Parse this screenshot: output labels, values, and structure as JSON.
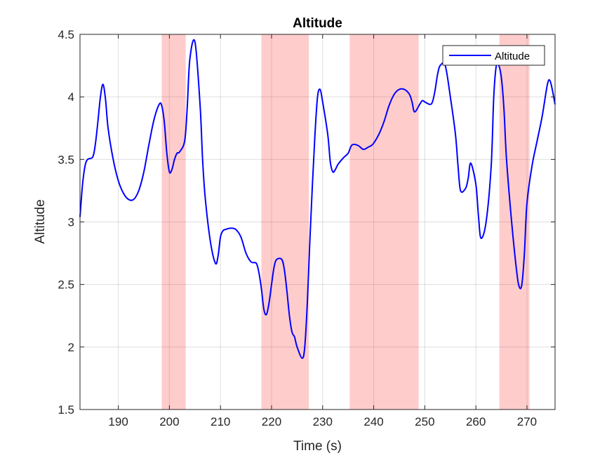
{
  "chart_data": {
    "type": "line",
    "title": "Altitude",
    "xlabel": "Time (s)",
    "ylabel": "Altitude",
    "xlim": [
      182.5,
      275.5
    ],
    "ylim": [
      1.5,
      4.5
    ],
    "xticks": [
      190,
      200,
      210,
      220,
      230,
      240,
      250,
      260,
      270
    ],
    "yticks": [
      1.5,
      2,
      2.5,
      3,
      3.5,
      4,
      4.5
    ],
    "xtick_labels": [
      "190",
      "200",
      "210",
      "220",
      "230",
      "240",
      "250",
      "260",
      "270"
    ],
    "ytick_labels": [
      "1.5",
      "2",
      "2.5",
      "3",
      "3.5",
      "4",
      "4.5"
    ],
    "grid": true,
    "legend": {
      "location": "top-right",
      "entries": [
        "Altitude"
      ]
    },
    "shaded_regions": [
      {
        "x_start": 198.5,
        "x_end": 203.2
      },
      {
        "x_start": 218.0,
        "x_end": 227.3
      },
      {
        "x_start": 235.3,
        "x_end": 248.8
      },
      {
        "x_start": 264.6,
        "x_end": 270.5
      }
    ],
    "series": [
      {
        "name": "Altitude",
        "color": "#0000ff",
        "x": [
          182.5,
          183.0,
          183.5,
          184.0,
          185.0,
          185.5,
          186.0,
          186.5,
          187.0,
          187.5,
          188.0,
          189.0,
          190.0,
          191.0,
          192.0,
          193.0,
          194.0,
          195.0,
          196.0,
          197.0,
          198.0,
          198.5,
          199.0,
          199.5,
          200.0,
          200.5,
          201.0,
          201.5,
          202.0,
          203.0,
          203.5,
          204.0,
          205.0,
          206.0,
          206.5,
          207.0,
          208.0,
          209.0,
          209.5,
          210.0,
          210.5,
          211.0,
          212.0,
          213.0,
          214.0,
          215.0,
          216.0,
          217.0,
          217.5,
          218.0,
          218.5,
          219.0,
          219.5,
          220.0,
          220.5,
          221.0,
          222.0,
          222.5,
          223.0,
          223.5,
          224.0,
          224.5,
          225.0,
          226.0,
          226.5,
          227.0,
          227.5,
          228.0,
          228.5,
          229.0,
          229.5,
          230.0,
          231.0,
          231.5,
          232.0,
          232.5,
          233.0,
          234.0,
          235.0,
          235.5,
          236.0,
          237.0,
          238.0,
          239.0,
          239.5,
          240.0,
          241.0,
          242.0,
          243.0,
          244.0,
          245.0,
          246.0,
          247.0,
          247.5,
          248.0,
          249.0,
          249.5,
          250.0,
          251.0,
          251.5,
          252.0,
          252.5,
          253.0,
          254.0,
          255.0,
          256.0,
          256.5,
          257.0,
          258.0,
          258.5,
          259.0,
          260.0,
          260.5,
          261.0,
          262.0,
          263.0,
          263.5,
          264.0,
          264.5,
          265.0,
          265.5,
          266.0,
          267.0,
          268.0,
          268.5,
          269.0,
          269.5,
          270.0,
          271.0,
          272.0,
          273.0,
          274.0,
          274.5,
          275.0,
          275.5
        ],
        "y": [
          3.04,
          3.3,
          3.45,
          3.5,
          3.52,
          3.62,
          3.8,
          4.0,
          4.1,
          3.98,
          3.75,
          3.5,
          3.33,
          3.23,
          3.18,
          3.18,
          3.25,
          3.4,
          3.62,
          3.82,
          3.94,
          3.93,
          3.8,
          3.55,
          3.4,
          3.42,
          3.5,
          3.55,
          3.56,
          3.65,
          3.92,
          4.3,
          4.44,
          3.94,
          3.5,
          3.2,
          2.85,
          2.67,
          2.72,
          2.88,
          2.93,
          2.94,
          2.95,
          2.94,
          2.88,
          2.75,
          2.68,
          2.67,
          2.6,
          2.47,
          2.3,
          2.26,
          2.35,
          2.5,
          2.64,
          2.7,
          2.7,
          2.62,
          2.45,
          2.25,
          2.12,
          2.08,
          2.0,
          1.91,
          2.0,
          2.35,
          2.85,
          3.3,
          3.7,
          4.0,
          4.06,
          3.96,
          3.7,
          3.48,
          3.4,
          3.42,
          3.46,
          3.51,
          3.55,
          3.6,
          3.62,
          3.61,
          3.58,
          3.6,
          3.61,
          3.63,
          3.7,
          3.8,
          3.93,
          4.02,
          4.06,
          4.06,
          4.02,
          3.96,
          3.88,
          3.94,
          3.97,
          3.96,
          3.94,
          3.96,
          4.05,
          4.18,
          4.25,
          4.25,
          4.0,
          3.7,
          3.45,
          3.25,
          3.27,
          3.35,
          3.47,
          3.3,
          3.05,
          2.87,
          3.0,
          3.45,
          4.0,
          4.25,
          4.25,
          4.15,
          3.9,
          3.5,
          3.0,
          2.6,
          2.48,
          2.5,
          2.75,
          3.15,
          3.45,
          3.65,
          3.85,
          4.1,
          4.13,
          4.05,
          3.94
        ]
      }
    ]
  }
}
